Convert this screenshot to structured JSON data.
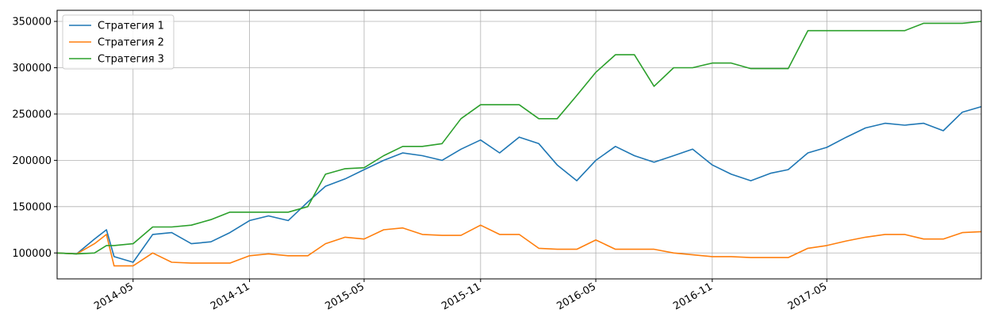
{
  "chart_data": {
    "type": "line",
    "title": "",
    "xlabel": "",
    "ylabel": "",
    "x_ticks": [
      "2014-05",
      "2014-11",
      "2015-05",
      "2015-11",
      "2016-05",
      "2016-11",
      "2017-05"
    ],
    "y_ticks": [
      "100000",
      "150000",
      "200000",
      "250000",
      "300000",
      "350000"
    ],
    "ylim": [
      72000,
      362000
    ],
    "xlim": [
      "2014-01-01",
      "2017-12-31"
    ],
    "grid": true,
    "legend_position": "top-left",
    "x": [
      "2014-01-01",
      "2014-02-01",
      "2014-03-01",
      "2014-03-20",
      "2014-04-01",
      "2014-05-01",
      "2014-06-01",
      "2014-07-01",
      "2014-08-01",
      "2014-09-01",
      "2014-10-01",
      "2014-11-01",
      "2014-12-01",
      "2015-01-01",
      "2015-02-01",
      "2015-03-01",
      "2015-04-01",
      "2015-05-01",
      "2015-06-01",
      "2015-07-01",
      "2015-08-01",
      "2015-09-01",
      "2015-10-01",
      "2015-11-01",
      "2015-12-01",
      "2016-01-01",
      "2016-02-01",
      "2016-03-01",
      "2016-04-01",
      "2016-05-01",
      "2016-06-01",
      "2016-07-01",
      "2016-08-01",
      "2016-09-01",
      "2016-10-01",
      "2016-11-01",
      "2016-12-01",
      "2017-01-01",
      "2017-02-01",
      "2017-03-01",
      "2017-04-01",
      "2017-05-01",
      "2017-06-01",
      "2017-07-01",
      "2017-08-01",
      "2017-09-01",
      "2017-10-01",
      "2017-11-01",
      "2017-12-01",
      "2017-12-31"
    ],
    "series": [
      {
        "name": "Стратегия 1",
        "color": "#1f77b4",
        "values": [
          100000,
          99000,
          115000,
          125000,
          96000,
          90000,
          120000,
          122000,
          110000,
          112000,
          122000,
          135000,
          140000,
          135000,
          155000,
          172000,
          180000,
          190000,
          200000,
          208000,
          205000,
          200000,
          212000,
          222000,
          208000,
          225000,
          218000,
          195000,
          178000,
          200000,
          215000,
          205000,
          198000,
          205000,
          212000,
          195000,
          185000,
          178000,
          186000,
          190000,
          208000,
          214000,
          225000,
          235000,
          240000,
          238000,
          240000,
          232000,
          252000,
          258000
        ]
      },
      {
        "name": "Стратегия 2",
        "color": "#ff7f0e",
        "values": [
          100000,
          99000,
          110000,
          120000,
          86000,
          86000,
          100000,
          90000,
          89000,
          89000,
          89000,
          97000,
          99000,
          97000,
          97000,
          110000,
          117000,
          115000,
          125000,
          127000,
          120000,
          119000,
          119000,
          130000,
          120000,
          120000,
          105000,
          104000,
          104000,
          114000,
          104000,
          104000,
          104000,
          100000,
          98000,
          96000,
          96000,
          95000,
          95000,
          95000,
          105000,
          108000,
          113000,
          117000,
          120000,
          120000,
          115000,
          115000,
          122000,
          123000
        ]
      },
      {
        "name": "Стратегия 3",
        "color": "#2ca02c",
        "values": [
          100000,
          99000,
          100000,
          108000,
          108000,
          110000,
          128000,
          128000,
          130000,
          136000,
          144000,
          144000,
          144000,
          144000,
          150000,
          185000,
          191000,
          192000,
          205000,
          215000,
          215000,
          218000,
          245000,
          260000,
          260000,
          260000,
          245000,
          245000,
          270000,
          295000,
          314000,
          314000,
          280000,
          300000,
          300000,
          305000,
          305000,
          299000,
          299000,
          299000,
          340000,
          340000,
          340000,
          340000,
          340000,
          340000,
          348000,
          348000,
          348000,
          350000
        ]
      }
    ]
  }
}
